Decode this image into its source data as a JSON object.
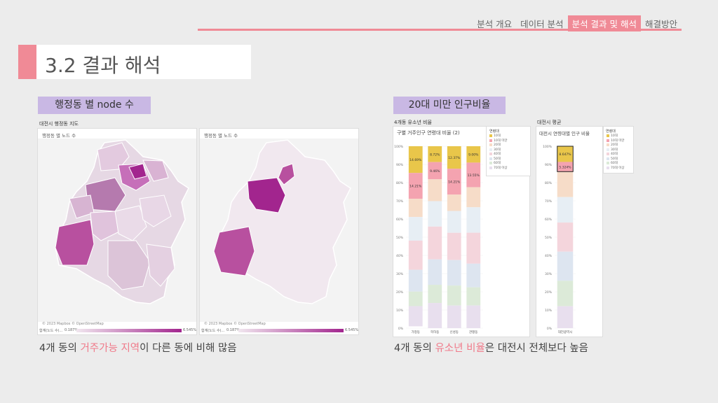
{
  "nav": {
    "items": [
      {
        "label": "분석 개요",
        "active": false
      },
      {
        "label": "데이터 분석",
        "active": false
      },
      {
        "label": "분석 결과 및 해석",
        "active": true
      },
      {
        "label": "해결방안",
        "active": false
      }
    ]
  },
  "page_title": "3.2 결과 해석",
  "left": {
    "section_label": "행정동 별 node 수",
    "map_caption": "대전시 행정동 지도",
    "panel1_title": "행정동 별 노드 수",
    "panel2_title": "행정동 별 노드 수",
    "credit": "© 2023 Mapbox © OpenStreetMap",
    "legend_min": "0.187%",
    "legend_max": "6.545%",
    "legend_label": "합계(노드 수)...",
    "caption_pre": "4개 동의 ",
    "caption_hl": "거주가능 지역",
    "caption_post": "이 다른 동에 비해 많음",
    "highlight_color": "#a2258e"
  },
  "right": {
    "section_label": "20대 미만 인구비율",
    "chart1_caption": "4개동 유소년 비율",
    "chart2_caption": "대전시 평균",
    "chart1_title": "구별 거주인구 연령대 비율 (2)",
    "chart2_title": "대전시 연령대별 인구 비율",
    "legend1_header": "연령대",
    "legend2_header": "연령대",
    "legend_entries": [
      "10대",
      "10대 미만",
      "20대",
      "30대",
      "40대",
      "50대",
      "60대",
      "70대 이상"
    ],
    "caption_pre": "4개 동의 ",
    "caption_hl": "유소년 비율",
    "caption_post": "은 대전시 전체보다 높음"
  },
  "chart_data": [
    {
      "type": "bar",
      "stacked": true,
      "title": "구별 거주인구 연령대 비율 (2)",
      "categories": [
        "가정동",
        "학하동",
        "신성동",
        "관평동"
      ],
      "ylim": [
        0,
        100
      ],
      "yticks": [
        "0%",
        "10%",
        "20%",
        "30%",
        "40%",
        "50%",
        "60%",
        "70%",
        "80%",
        "90%",
        "100%"
      ],
      "series": [
        {
          "name": "10대",
          "color": "#e9c64a",
          "values": [
            14.69,
            8.72,
            12.37,
            9.0
          ],
          "labels": [
            "14.69%",
            "8.72%",
            "12.37%",
            "9.00%"
          ]
        },
        {
          "name": "10대 미만",
          "color": "#f4a3b0",
          "values": [
            14.21,
            9.46,
            14.21,
            13.55
          ],
          "labels": [
            "14.21%",
            "9.46%",
            "14.21%",
            "13.55%"
          ]
        },
        {
          "name": "20대",
          "color": "#f6dcc8",
          "values": [
            10,
            12,
            9,
            11
          ]
        },
        {
          "name": "30대",
          "color": "#e7eef4",
          "values": [
            13,
            14,
            12,
            14
          ]
        },
        {
          "name": "40대",
          "color": "#f4d5dc",
          "values": [
            16,
            18,
            15,
            17
          ]
        },
        {
          "name": "50대",
          "color": "#dde5f0",
          "values": [
            12,
            14,
            14,
            13
          ]
        },
        {
          "name": "60대",
          "color": "#dcead8",
          "values": [
            8,
            10,
            11,
            10
          ]
        },
        {
          "name": "70대 이상",
          "color": "#e8dfee",
          "values": [
            11.1,
            13.82,
            12.42,
            12.45
          ]
        }
      ]
    },
    {
      "type": "bar",
      "stacked": true,
      "title": "대전시 연령대별 인구 비율",
      "categories": [
        "대전광역시"
      ],
      "ylim": [
        0,
        100
      ],
      "yticks": [
        "0%",
        "10%",
        "20%",
        "30%",
        "40%",
        "50%",
        "60%",
        "70%",
        "80%",
        "90%",
        "100%"
      ],
      "series": [
        {
          "name": "10대",
          "color": "#e9c64a",
          "values": [
            8.64
          ],
          "labels": [
            "8.647%"
          ]
        },
        {
          "name": "10대 미만",
          "color": "#f4a3b0",
          "values": [
            5.32
          ],
          "labels": [
            "5.324%"
          ]
        },
        {
          "name": "20대",
          "color": "#f6dcc8",
          "values": [
            14
          ]
        },
        {
          "name": "30대",
          "color": "#e7eef4",
          "values": [
            14
          ]
        },
        {
          "name": "40대",
          "color": "#f4d5dc",
          "values": [
            16
          ]
        },
        {
          "name": "50대",
          "color": "#dde5f0",
          "values": [
            16
          ]
        },
        {
          "name": "60대",
          "color": "#dcead8",
          "values": [
            14
          ]
        },
        {
          "name": "70대 이상",
          "color": "#e8dfee",
          "values": [
            12.04
          ]
        }
      ]
    }
  ]
}
